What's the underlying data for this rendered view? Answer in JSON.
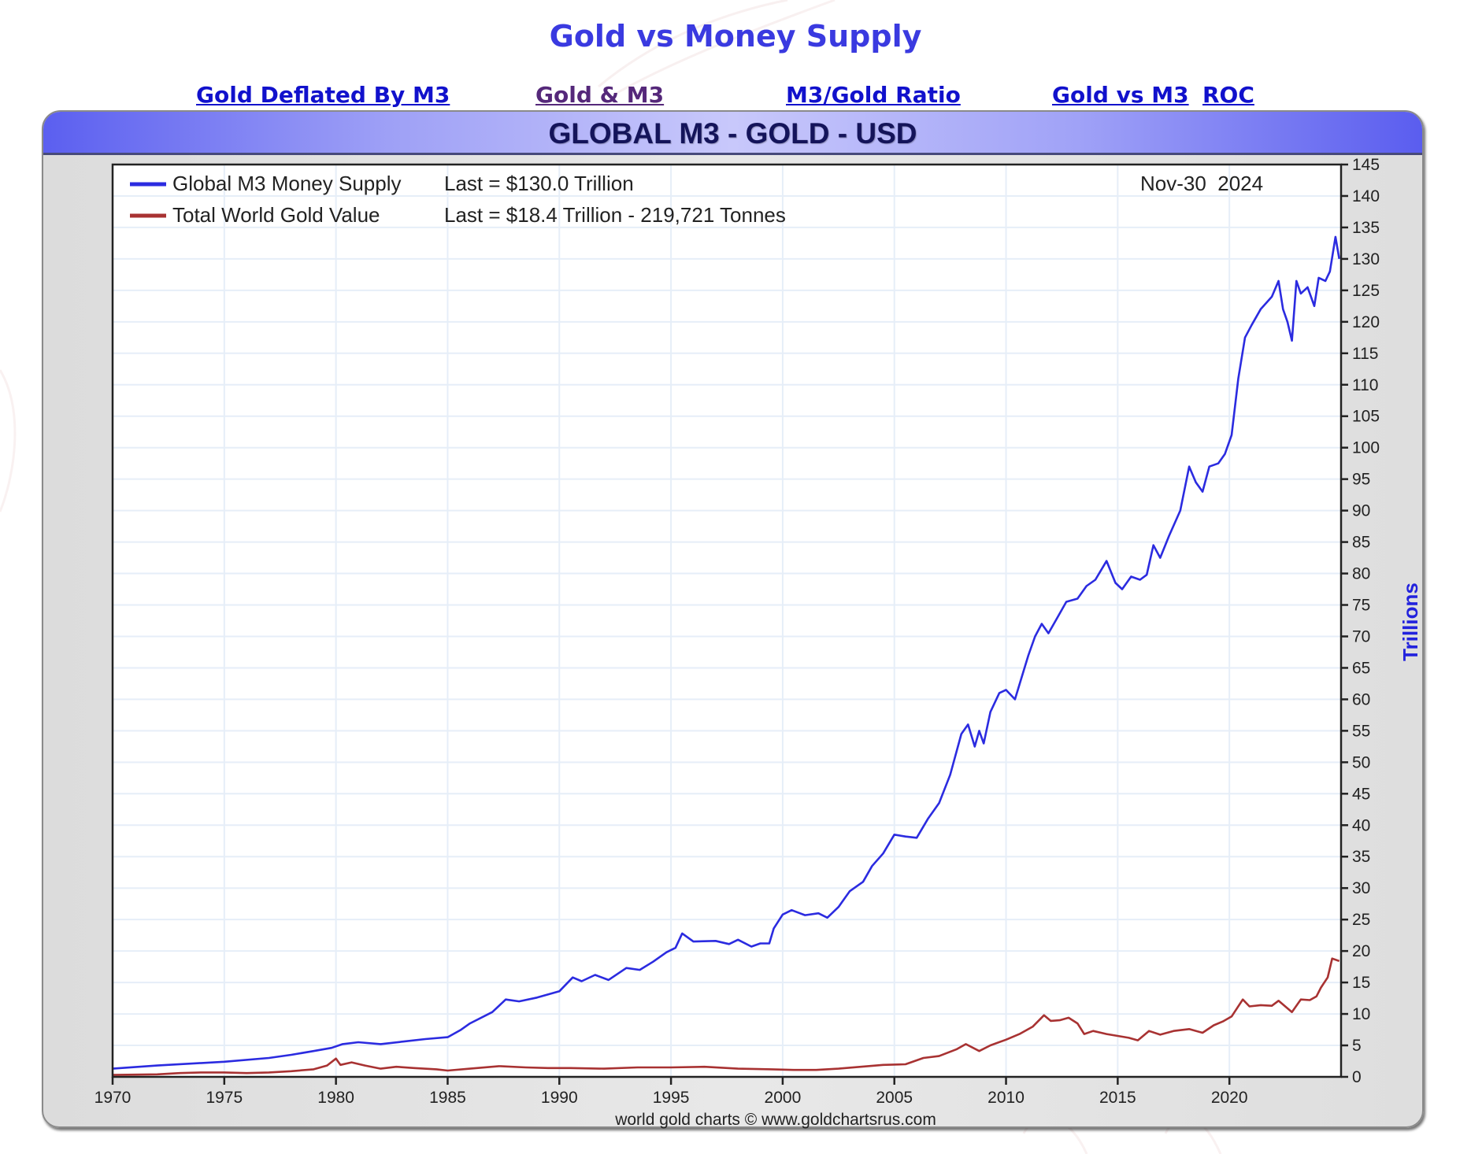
{
  "page": {
    "title": "Gold vs Money Supply",
    "nav_links": [
      {
        "label": "Gold Deflated By M3",
        "visited": false
      },
      {
        "label": "Gold & M3",
        "visited": true
      },
      {
        "label": "M3/Gold Ratio",
        "visited": false
      },
      {
        "label": "Gold vs M3",
        "visited": false
      },
      {
        "label": "ROC",
        "visited": false
      }
    ]
  },
  "panel": {
    "header_title": "GLOBAL M3 - GOLD - USD",
    "date_label": "Nov-30  2024",
    "footer": "world gold charts © www.goldchartsrus.com"
  },
  "colors": {
    "m3": "#2b2be0",
    "gold": "#a83232",
    "title": "#3a3ae0",
    "link": "#1111cc",
    "link_visited": "#55287a"
  },
  "chart_data": {
    "type": "line",
    "title": "GLOBAL M3 - GOLD - USD",
    "xlabel": "",
    "ylabel": "Trillions",
    "xlim": [
      1970,
      2025
    ],
    "ylim": [
      0,
      145
    ],
    "x_ticks": [
      1970,
      1975,
      1980,
      1985,
      1990,
      1995,
      2000,
      2005,
      2010,
      2015,
      2020
    ],
    "y_ticks": [
      0,
      5,
      10,
      15,
      20,
      25,
      30,
      35,
      40,
      45,
      50,
      55,
      60,
      65,
      70,
      75,
      80,
      85,
      90,
      95,
      100,
      105,
      110,
      115,
      120,
      125,
      130,
      135,
      140,
      145
    ],
    "grid": true,
    "legend_position": "top-left",
    "annotation": "Nov-30  2024",
    "series": [
      {
        "name": "Global M3 Money Supply",
        "last_label": "Last = $130.0 Trillion",
        "color": "#2b2be0",
        "points": [
          [
            1970,
            1.3
          ],
          [
            1972,
            1.8
          ],
          [
            1975,
            2.4
          ],
          [
            1977,
            3.0
          ],
          [
            1978,
            3.5
          ],
          [
            1979,
            4.1
          ],
          [
            1979.8,
            4.6
          ],
          [
            1980.3,
            5.2
          ],
          [
            1981,
            5.5
          ],
          [
            1982,
            5.2
          ],
          [
            1983,
            5.6
          ],
          [
            1984,
            6.0
          ],
          [
            1985,
            6.3
          ],
          [
            1985.6,
            7.5
          ],
          [
            1986,
            8.5
          ],
          [
            1987,
            10.3
          ],
          [
            1987.6,
            12.3
          ],
          [
            1988.2,
            12.0
          ],
          [
            1989,
            12.6
          ],
          [
            1990,
            13.6
          ],
          [
            1990.6,
            15.8
          ],
          [
            1991,
            15.2
          ],
          [
            1991.6,
            16.2
          ],
          [
            1992.2,
            15.4
          ],
          [
            1993,
            17.3
          ],
          [
            1993.6,
            17.0
          ],
          [
            1994.2,
            18.3
          ],
          [
            1994.8,
            19.8
          ],
          [
            1995.2,
            20.5
          ],
          [
            1995.5,
            22.8
          ],
          [
            1996,
            21.5
          ],
          [
            1997,
            21.6
          ],
          [
            1997.6,
            21.1
          ],
          [
            1998,
            21.8
          ],
          [
            1998.6,
            20.7
          ],
          [
            1999,
            21.2
          ],
          [
            1999.4,
            21.2
          ],
          [
            1999.6,
            23.6
          ],
          [
            2000,
            25.8
          ],
          [
            2000.4,
            26.5
          ],
          [
            2001,
            25.7
          ],
          [
            2001.6,
            26.0
          ],
          [
            2002,
            25.3
          ],
          [
            2002.5,
            27.0
          ],
          [
            2003,
            29.5
          ],
          [
            2003.6,
            31.0
          ],
          [
            2004,
            33.5
          ],
          [
            2004.5,
            35.5
          ],
          [
            2005,
            38.5
          ],
          [
            2005.5,
            38.2
          ],
          [
            2006,
            38.0
          ],
          [
            2006.5,
            41.0
          ],
          [
            2007,
            43.5
          ],
          [
            2007.5,
            48.0
          ],
          [
            2008,
            54.5
          ],
          [
            2008.3,
            56.0
          ],
          [
            2008.6,
            52.5
          ],
          [
            2008.8,
            55.0
          ],
          [
            2009,
            53.0
          ],
          [
            2009.3,
            58.0
          ],
          [
            2009.7,
            61.0
          ],
          [
            2010,
            61.5
          ],
          [
            2010.4,
            60.0
          ],
          [
            2010.7,
            63.5
          ],
          [
            2011,
            67.0
          ],
          [
            2011.3,
            70.0
          ],
          [
            2011.6,
            72.0
          ],
          [
            2011.9,
            70.5
          ],
          [
            2012.3,
            73.0
          ],
          [
            2012.7,
            75.5
          ],
          [
            2013.2,
            76.0
          ],
          [
            2013.6,
            78.0
          ],
          [
            2014,
            79.0
          ],
          [
            2014.5,
            82.0
          ],
          [
            2014.9,
            78.5
          ],
          [
            2015.2,
            77.5
          ],
          [
            2015.6,
            79.5
          ],
          [
            2016,
            79.0
          ],
          [
            2016.3,
            79.8
          ],
          [
            2016.6,
            84.5
          ],
          [
            2016.9,
            82.5
          ],
          [
            2017.3,
            86.0
          ],
          [
            2017.8,
            90.0
          ],
          [
            2018.2,
            97.0
          ],
          [
            2018.5,
            94.5
          ],
          [
            2018.8,
            93.0
          ],
          [
            2019.1,
            97.0
          ],
          [
            2019.5,
            97.5
          ],
          [
            2019.8,
            99.0
          ],
          [
            2020.1,
            102.0
          ],
          [
            2020.4,
            111.0
          ],
          [
            2020.7,
            117.5
          ],
          [
            2021,
            119.5
          ],
          [
            2021.4,
            122.0
          ],
          [
            2021.9,
            124.0
          ],
          [
            2022.2,
            126.5
          ],
          [
            2022.4,
            122.0
          ],
          [
            2022.6,
            120.0
          ],
          [
            2022.8,
            117.0
          ],
          [
            2023.0,
            126.5
          ],
          [
            2023.2,
            124.5
          ],
          [
            2023.5,
            125.5
          ],
          [
            2023.8,
            122.5
          ],
          [
            2024.0,
            127.0
          ],
          [
            2024.3,
            126.5
          ],
          [
            2024.5,
            128.0
          ],
          [
            2024.75,
            133.5
          ],
          [
            2024.92,
            130.0
          ]
        ]
      },
      {
        "name": "Total World Gold Value",
        "last_label": "Last = $18.4 Trillion - 219,721 Tonnes",
        "color": "#a83232",
        "points": [
          [
            1970,
            0.3
          ],
          [
            1972,
            0.4
          ],
          [
            1973,
            0.6
          ],
          [
            1974,
            0.7
          ],
          [
            1975,
            0.7
          ],
          [
            1976,
            0.6
          ],
          [
            1977,
            0.7
          ],
          [
            1978,
            0.9
          ],
          [
            1979,
            1.2
          ],
          [
            1979.6,
            1.8
          ],
          [
            1980.0,
            2.9
          ],
          [
            1980.2,
            1.9
          ],
          [
            1980.7,
            2.3
          ],
          [
            1981.3,
            1.8
          ],
          [
            1982,
            1.3
          ],
          [
            1982.7,
            1.6
          ],
          [
            1983.5,
            1.4
          ],
          [
            1984.5,
            1.2
          ],
          [
            1985,
            1.0
          ],
          [
            1986,
            1.3
          ],
          [
            1987.3,
            1.7
          ],
          [
            1988.5,
            1.5
          ],
          [
            1989.5,
            1.4
          ],
          [
            1990.5,
            1.4
          ],
          [
            1992,
            1.3
          ],
          [
            1993.5,
            1.5
          ],
          [
            1995,
            1.5
          ],
          [
            1996.5,
            1.6
          ],
          [
            1998,
            1.3
          ],
          [
            1999.5,
            1.2
          ],
          [
            2000.5,
            1.1
          ],
          [
            2001.5,
            1.1
          ],
          [
            2002.5,
            1.3
          ],
          [
            2003.5,
            1.6
          ],
          [
            2004.5,
            1.9
          ],
          [
            2005.5,
            2.0
          ],
          [
            2006.3,
            3.0
          ],
          [
            2007,
            3.3
          ],
          [
            2007.8,
            4.4
          ],
          [
            2008.2,
            5.2
          ],
          [
            2008.8,
            4.1
          ],
          [
            2009.3,
            5.0
          ],
          [
            2010,
            5.9
          ],
          [
            2010.6,
            6.8
          ],
          [
            2011.2,
            8.0
          ],
          [
            2011.7,
            9.8
          ],
          [
            2012.0,
            8.9
          ],
          [
            2012.4,
            9.0
          ],
          [
            2012.8,
            9.4
          ],
          [
            2013.2,
            8.5
          ],
          [
            2013.5,
            6.8
          ],
          [
            2013.9,
            7.3
          ],
          [
            2014.5,
            6.8
          ],
          [
            2015.0,
            6.5
          ],
          [
            2015.5,
            6.2
          ],
          [
            2015.9,
            5.8
          ],
          [
            2016.4,
            7.3
          ],
          [
            2016.9,
            6.7
          ],
          [
            2017.5,
            7.3
          ],
          [
            2018.2,
            7.6
          ],
          [
            2018.8,
            7.0
          ],
          [
            2019.3,
            8.2
          ],
          [
            2019.7,
            8.8
          ],
          [
            2020.1,
            9.6
          ],
          [
            2020.6,
            12.3
          ],
          [
            2020.9,
            11.2
          ],
          [
            2021.4,
            11.4
          ],
          [
            2021.9,
            11.3
          ],
          [
            2022.2,
            12.1
          ],
          [
            2022.8,
            10.3
          ],
          [
            2023.2,
            12.3
          ],
          [
            2023.6,
            12.2
          ],
          [
            2023.9,
            12.8
          ],
          [
            2024.1,
            14.2
          ],
          [
            2024.4,
            15.8
          ],
          [
            2024.6,
            18.8
          ],
          [
            2024.92,
            18.4
          ]
        ]
      }
    ]
  }
}
